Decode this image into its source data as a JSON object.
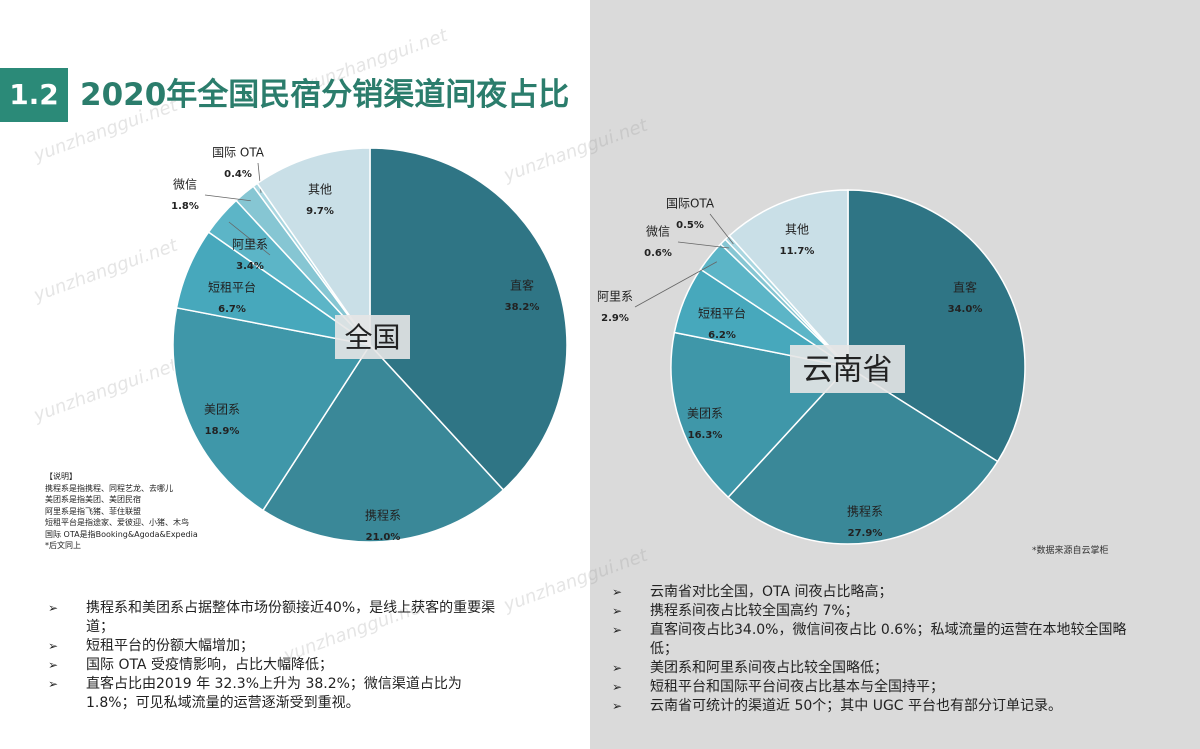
{
  "header": {
    "number": "1.2",
    "title": "2020年全国民宿分销渠道间夜占比"
  },
  "watermark": "yunzhanggui.net",
  "chart_data": [
    {
      "type": "pie",
      "label": "全国",
      "categories": [
        "直客",
        "携程系",
        "美团系",
        "短租平台",
        "阿里系",
        "微信",
        "国际 OTA",
        "其他"
      ],
      "values": [
        38.2,
        21.0,
        18.9,
        6.7,
        3.4,
        1.8,
        0.4,
        9.7
      ],
      "value_labels": [
        "38.2%",
        "21.0%",
        "18.9%",
        "6.7%",
        "3.4%",
        "1.8%",
        "0.4%",
        "9.7%"
      ],
      "colors": [
        "#2f7585",
        "#3a8898",
        "#3f97a9",
        "#47a8bc",
        "#5cb5c7",
        "#86c6d3",
        "#a9d6e0",
        "#c9dfe7"
      ]
    },
    {
      "type": "pie",
      "label": "云南省",
      "categories": [
        "直客",
        "携程系",
        "美团系",
        "短租平台",
        "阿里系",
        "微信",
        "国际OTA",
        "其他"
      ],
      "values": [
        34.0,
        27.9,
        16.3,
        6.2,
        2.9,
        0.6,
        0.5,
        11.7
      ],
      "value_labels": [
        "34.0%",
        "27.9%",
        "16.3%",
        "6.2%",
        "2.9%",
        "0.6%",
        "0.5%",
        "11.7%"
      ],
      "colors": [
        "#2f7585",
        "#3a8898",
        "#3f97a9",
        "#47a8bc",
        "#5cb5c7",
        "#86c6d3",
        "#a9d6e0",
        "#c9dfe7"
      ]
    }
  ],
  "notes": [
    "【说明】",
    "携程系是指携程、同程艺龙、去哪儿",
    "美团系是指美团、美团民宿",
    "阿里系是指飞猪、菲住联盟",
    "短租平台是指途家、爱彼迎、小猪、木鸟",
    "国际 OTA是指Booking&Agoda&Expedia",
    "*后文同上"
  ],
  "source": "*数据来源自云掌柜",
  "bullets_left": [
    "携程系和美团系占据整体市场份额接近40%，是线上获客的重要渠道；",
    "短租平台的份额大幅增加；",
    "国际 OTA 受疫情影响，占比大幅降低；",
    "直客占比由2019 年 32.3%上升为 38.2%；微信渠道占比为 1.8%；可见私域流量的运营逐渐受到重视。"
  ],
  "bullets_right": [
    "云南省对比全国，OTA 间夜占比略高；",
    "携程系间夜占比较全国高约 7%；",
    "直客间夜占比34.0%，微信间夜占比 0.6%；私域流量的运营在本地较全国略低；",
    "美团系和阿里系间夜占比较全国略低；",
    "短租平台和国际平台间夜占比基本与全国持平；",
    "云南省可统计的渠道近 50个；其中 UGC 平台也有部分订单记录。"
  ]
}
